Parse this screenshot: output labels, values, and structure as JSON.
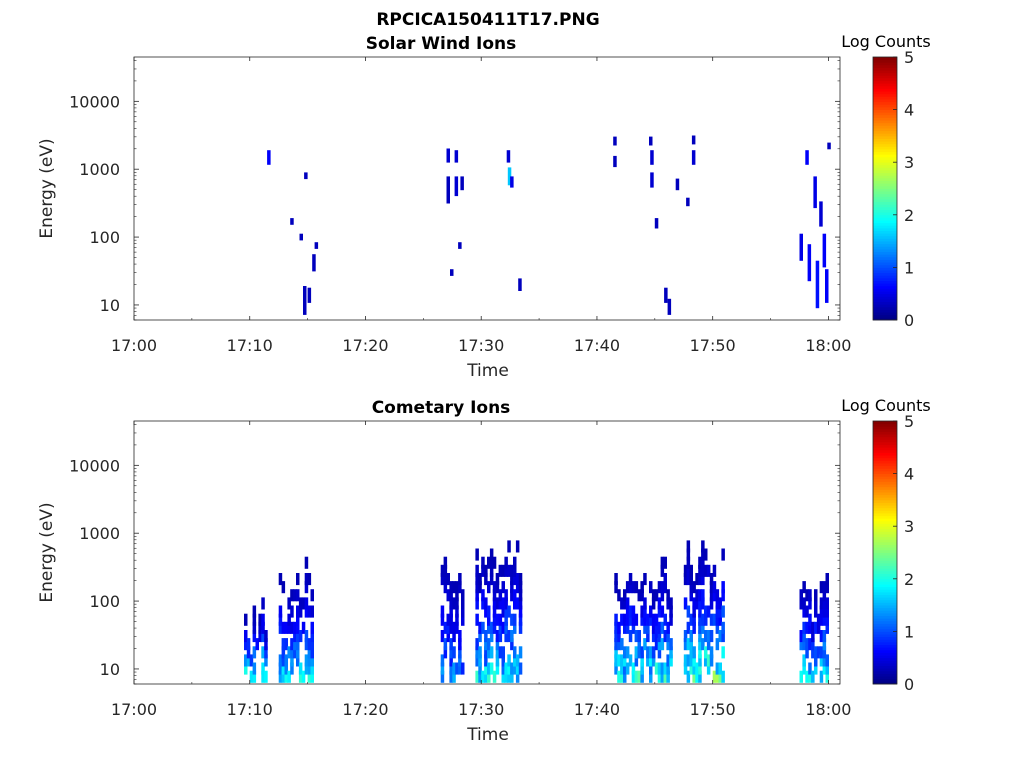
{
  "figure": {
    "title": "RPCICA150411T17.PNG"
  },
  "colorbar": {
    "label": "Log Counts",
    "ticks": [
      "0",
      "1",
      "2",
      "3",
      "4",
      "5"
    ],
    "range": [
      0,
      5
    ],
    "colormap": "jet"
  },
  "chart_data": [
    {
      "type": "heatmap",
      "title": "Solar Wind Ions",
      "xlabel": "Time",
      "ylabel": "Energy (eV)",
      "y_scale": "log",
      "xlim": [
        "17:00",
        "18:01"
      ],
      "ylim": [
        6,
        45000
      ],
      "x_ticks": [
        "17:00",
        "17:10",
        "17:20",
        "17:30",
        "17:40",
        "17:50",
        "18:00"
      ],
      "y_ticks": [
        "10",
        "100",
        "1000",
        "10000"
      ],
      "cells": [
        {
          "t": "17:11.5",
          "e": [
            1300,
            1700
          ],
          "v": 0.6
        },
        {
          "t": "17:13.5",
          "e": [
            170,
            170
          ],
          "v": 0.3
        },
        {
          "t": "17:14.3",
          "e": [
            100,
            100
          ],
          "v": 0.3
        },
        {
          "t": "17:14.7",
          "e": [
            800,
            800
          ],
          "v": 0.3
        },
        {
          "t": "17:14.6",
          "e": [
            8,
            17
          ],
          "v": 0.3
        },
        {
          "t": "17:15.0",
          "e": [
            12,
            16
          ],
          "v": 0.3
        },
        {
          "t": "17:15.4",
          "e": [
            35,
            50
          ],
          "v": 0.3
        },
        {
          "t": "17:15.6",
          "e": [
            75,
            75
          ],
          "v": 0.3
        },
        {
          "t": "17:27.0",
          "e": [
            1400,
            1800
          ],
          "v": 0.4
        },
        {
          "t": "17:27.0",
          "e": [
            350,
            700
          ],
          "v": 0.3
        },
        {
          "t": "17:27.7",
          "e": [
            1400,
            1700
          ],
          "v": 0.4
        },
        {
          "t": "17:27.7",
          "e": [
            450,
            700
          ],
          "v": 0.4
        },
        {
          "t": "17:28.2",
          "e": [
            550,
            700
          ],
          "v": 0.3
        },
        {
          "t": "17:28.0",
          "e": [
            75,
            75
          ],
          "v": 0.3
        },
        {
          "t": "17:27.3",
          "e": [
            30,
            30
          ],
          "v": 0.3
        },
        {
          "t": "17:32.2",
          "e": [
            1400,
            1700
          ],
          "v": 0.4
        },
        {
          "t": "17:32.3",
          "e": [
            650,
            950
          ],
          "v": 1.6
        },
        {
          "t": "17:32.5",
          "e": [
            600,
            700
          ],
          "v": 0.5
        },
        {
          "t": "17:33.2",
          "e": [
            18,
            22
          ],
          "v": 0.3
        },
        {
          "t": "17:41.4",
          "e": [
            2500,
            2700
          ],
          "v": 0.3
        },
        {
          "t": "17:41.4",
          "e": [
            1200,
            1400
          ],
          "v": 0.3
        },
        {
          "t": "17:44.5",
          "e": [
            2500,
            2700
          ],
          "v": 0.3
        },
        {
          "t": "17:44.6",
          "e": [
            1300,
            1700
          ],
          "v": 0.4
        },
        {
          "t": "17:44.6",
          "e": [
            600,
            800
          ],
          "v": 0.4
        },
        {
          "t": "17:45.0",
          "e": [
            150,
            170
          ],
          "v": 0.3
        },
        {
          "t": "17:45.8",
          "e": [
            12,
            16
          ],
          "v": 0.3
        },
        {
          "t": "17:46.1",
          "e": [
            8,
            11
          ],
          "v": 0.3
        },
        {
          "t": "17:46.8",
          "e": [
            550,
            650
          ],
          "v": 0.3
        },
        {
          "t": "17:47.7",
          "e": [
            320,
            340
          ],
          "v": 0.3
        },
        {
          "t": "17:48.2",
          "e": [
            1300,
            1700
          ],
          "v": 0.4
        },
        {
          "t": "17:48.2",
          "e": [
            2600,
            2800
          ],
          "v": 0.3
        },
        {
          "t": "17:57.5",
          "e": [
            50,
            100
          ],
          "v": 0.5
        },
        {
          "t": "17:58.0",
          "e": [
            1300,
            1700
          ],
          "v": 0.6
        },
        {
          "t": "17:58.2",
          "e": [
            25,
            70
          ],
          "v": 0.6
        },
        {
          "t": "17:58.7",
          "e": [
            300,
            700
          ],
          "v": 0.5
        },
        {
          "t": "17:58.9",
          "e": [
            10,
            40
          ],
          "v": 0.7
        },
        {
          "t": "17:59.2",
          "e": [
            160,
            300
          ],
          "v": 0.4
        },
        {
          "t": "17:59.5",
          "e": [
            40,
            100
          ],
          "v": 0.6
        },
        {
          "t": "17:59.7",
          "e": [
            12,
            30
          ],
          "v": 0.6
        },
        {
          "t": "17:59.9",
          "e": [
            2200,
            2200
          ],
          "v": 0.3
        }
      ]
    },
    {
      "type": "heatmap",
      "title": "Cometary Ions",
      "xlabel": "Time",
      "ylabel": "Energy (eV)",
      "y_scale": "log",
      "xlim": [
        "17:00",
        "18:01"
      ],
      "ylim": [
        6,
        45000
      ],
      "x_ticks": [
        "17:00",
        "17:10",
        "17:20",
        "17:30",
        "17:40",
        "17:50",
        "18:00"
      ],
      "y_ticks": [
        "10",
        "100",
        "1000",
        "10000"
      ],
      "bursts": [
        {
          "t_start": "17:09.5",
          "t_end": "17:11.5",
          "e_top": 130,
          "peak": 2.0
        },
        {
          "t_start": "17:12.5",
          "t_end": "17:15.5",
          "e_top": 380,
          "peak": 1.7
        },
        {
          "t_start": "17:26.5",
          "t_end": "17:28.5",
          "e_top": 550,
          "peak": 1.2
        },
        {
          "t_start": "17:29.5",
          "t_end": "17:33.5",
          "e_top": 750,
          "peak": 1.8
        },
        {
          "t_start": "17:41.5",
          "t_end": "17:46.5",
          "e_top": 450,
          "peak": 2.0
        },
        {
          "t_start": "17:47.5",
          "t_end": "17:51.0",
          "e_top": 750,
          "peak": 2.3
        },
        {
          "t_start": "17:57.5",
          "t_end": "18:00.0",
          "e_top": 230,
          "peak": 1.8
        }
      ]
    }
  ]
}
